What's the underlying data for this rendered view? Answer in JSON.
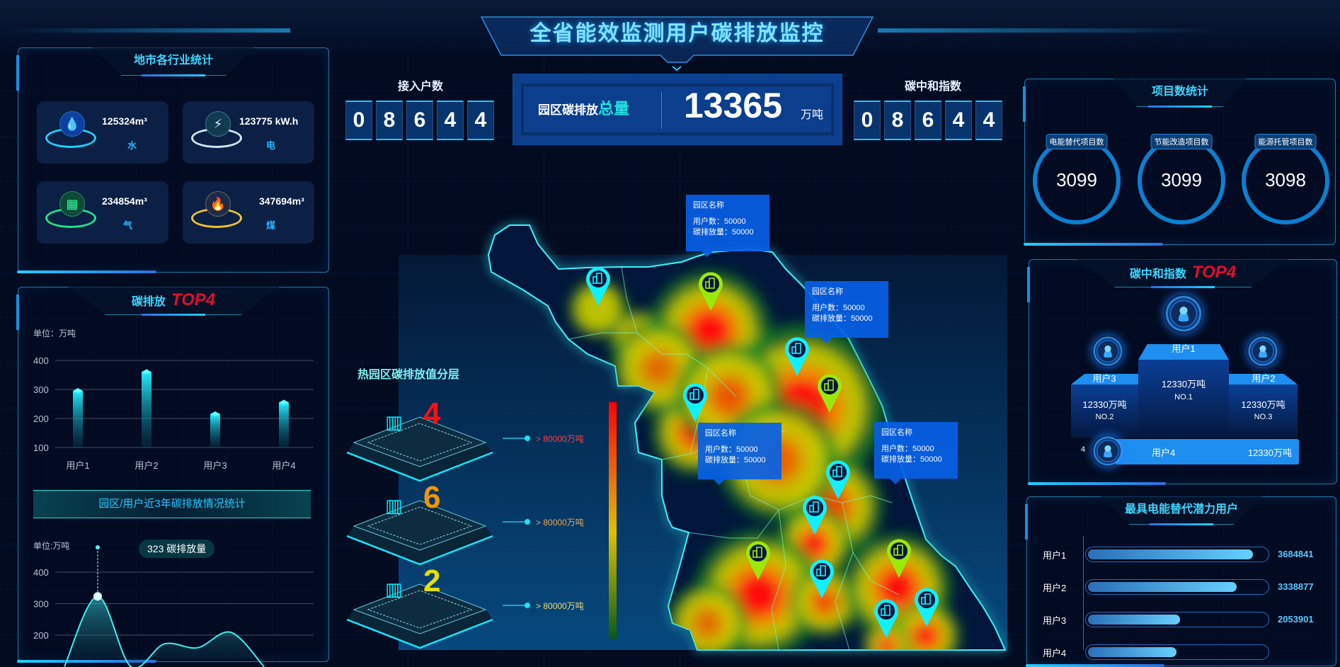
{
  "header": {
    "title": "全省能效监测用户碳排放监控"
  },
  "counters": {
    "users": {
      "label": "接入户数",
      "digits": [
        "0",
        "8",
        "6",
        "4",
        "4"
      ]
    },
    "neutral": {
      "label": "碳中和指数",
      "digits": [
        "0",
        "8",
        "6",
        "4",
        "4"
      ]
    },
    "total": {
      "label_a": "园区碳排放",
      "label_b": "总量",
      "value": "13365",
      "unit": "万吨"
    }
  },
  "industry": {
    "title": "地市各行业统计",
    "items": [
      {
        "value": "125324m³",
        "label": "水",
        "icon": "water-drop-icon",
        "color": "#1ed0ff"
      },
      {
        "value": "123775 kW.h",
        "label": "电",
        "icon": "lightning-icon",
        "color": "#cfe6f0"
      },
      {
        "value": "234854m³",
        "label": "气",
        "icon": "gas-icon",
        "color": "#22e08a"
      },
      {
        "value": "347694m³",
        "label": "煤",
        "icon": "flame-icon",
        "color": "#f2c230"
      }
    ]
  },
  "emission_top": {
    "title": "碳排放",
    "badge": "TOP4",
    "unit": "单位：万吨"
  },
  "trend": {
    "banner": "园区/用户近3年碳排放情况统计",
    "unit": "单位:万吨",
    "tooltip_value": "323",
    "tooltip_label": "碳排放量"
  },
  "chart_data": [
    {
      "type": "bar",
      "categories": [
        "用户1",
        "用户2",
        "用户3",
        "用户4"
      ],
      "values": [
        295,
        360,
        215,
        255
      ],
      "ylabel": "单位：万吨",
      "ylim": [
        100,
        400
      ],
      "yticks": [
        100,
        200,
        300,
        400
      ],
      "grid": true
    },
    {
      "type": "area",
      "values": [
        100,
        323,
        100,
        172,
        160,
        209,
        100
      ],
      "ylabel": "单位:万吨",
      "ylim": [
        100,
        400
      ],
      "yticks": [
        200,
        300,
        400
      ],
      "grid": true,
      "highlight": {
        "index": 1,
        "label": "323 碳排放量"
      }
    }
  ],
  "layers": {
    "title": "热园区碳排放值分层",
    "items": [
      {
        "count": "4",
        "range": "> 80000万吨",
        "color": "#ff1010",
        "text_color": "#f4404a"
      },
      {
        "count": "6",
        "range": "> 80000万吨",
        "color": "#f0960a",
        "text_color": "#f0a850"
      },
      {
        "count": "2",
        "range": "> 80000万吨",
        "color": "#e6e000",
        "text_color": "#f0d870"
      }
    ]
  },
  "map": {
    "tooltips": [
      {
        "title": "园区名称",
        "users": "用户数：50000",
        "emission": "碳排放量：50000"
      },
      {
        "title": "园区名称",
        "users": "用户数：50000",
        "emission": "碳排放量：50000"
      },
      {
        "title": "园区名称",
        "users": "用户数：50000",
        "emission": "碳排放量：50000"
      },
      {
        "title": "园区名称",
        "users": "用户数：50000",
        "emission": "碳排放量：50000"
      }
    ],
    "marker_colors": {
      "cyan": "#12f0ff",
      "green": "#9be80a"
    }
  },
  "projects": {
    "title": "项目数统计",
    "items": [
      {
        "label": "电能替代项目数",
        "value": "3099"
      },
      {
        "label": "节能改造项目数",
        "value": "3099"
      },
      {
        "label": "能源托管项目数",
        "value": "3098"
      }
    ]
  },
  "neutral_top": {
    "title": "碳中和指数",
    "badge": "TOP4",
    "podium": [
      {
        "rank": "NO.1",
        "name": "用户1",
        "value": "12330万吨"
      },
      {
        "rank": "NO.2",
        "name": "用户3",
        "value": "12330万吨"
      },
      {
        "rank": "NO.3",
        "name": "用户2",
        "value": "12330万吨"
      }
    ],
    "fourth": {
      "rank": "4",
      "name": "用户4",
      "value": "12330万吨"
    }
  },
  "potential": {
    "title": "最具电能替代潜力用户",
    "rows": [
      {
        "name": "用户1",
        "value": "3684841",
        "fill": 0.93
      },
      {
        "name": "用户2",
        "value": "3338877",
        "fill": 0.84
      },
      {
        "name": "用户3",
        "value": "2053901",
        "fill": 0.52
      },
      {
        "name": "用户4",
        "fill": 0.5
      }
    ]
  }
}
